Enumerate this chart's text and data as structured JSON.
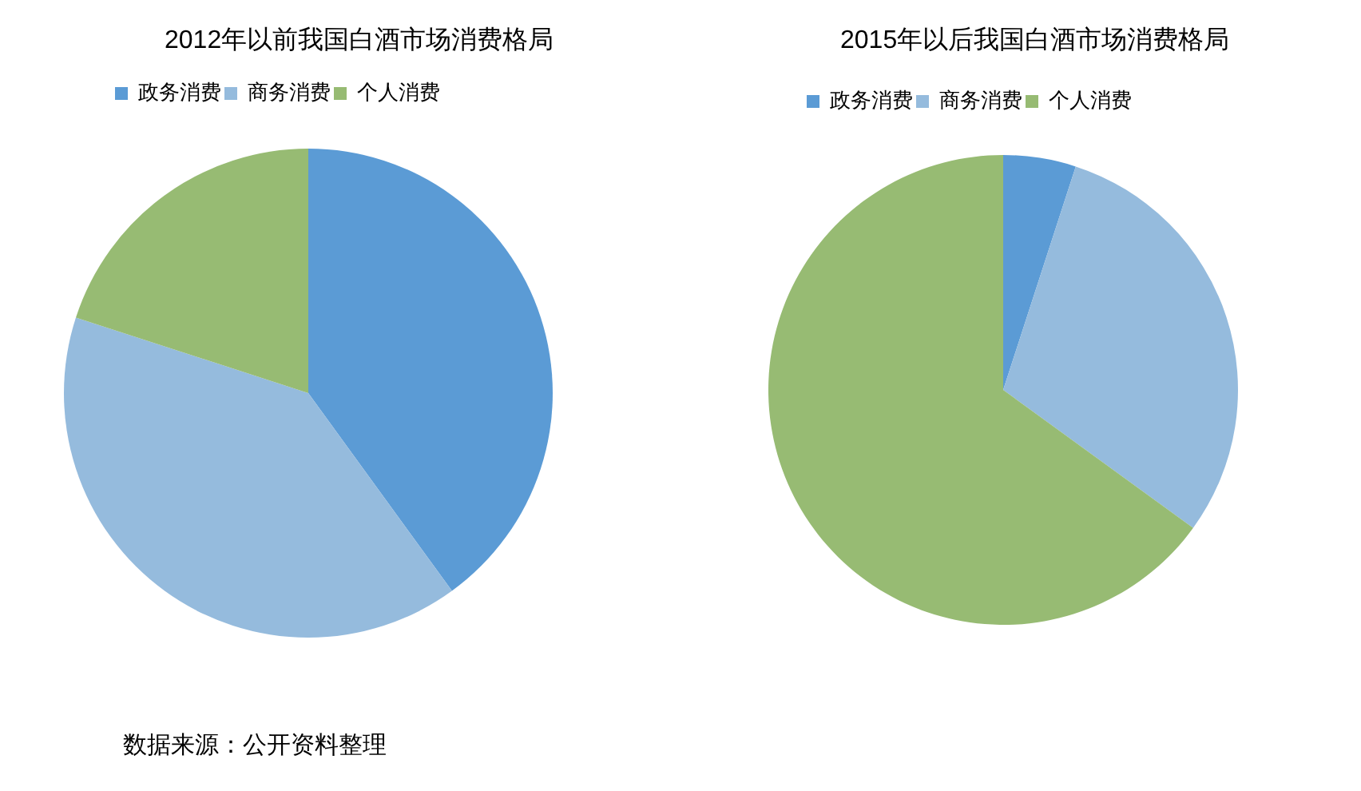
{
  "chart_data": [
    {
      "type": "pie",
      "title": "2012年以前我国白酒市场消费格局",
      "categories": [
        "政务消费",
        "商务消费",
        "个人消费"
      ],
      "values": [
        40,
        40,
        20
      ],
      "colors": [
        "#5b9bd5",
        "#95bbdd",
        "#97bb73"
      ],
      "legend": "top",
      "annotations": [
        "数据来源：公开资料整理"
      ]
    },
    {
      "type": "pie",
      "title": "2015年以后我国白酒市场消费格局",
      "categories": [
        "政务消费",
        "商务消费",
        "个人消费"
      ],
      "values": [
        5,
        30,
        65
      ],
      "colors": [
        "#5b9bd5",
        "#95bbdd",
        "#97bb73"
      ],
      "legend": "top"
    }
  ]
}
